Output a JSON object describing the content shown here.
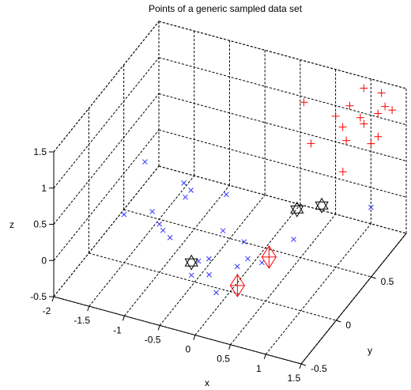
{
  "chart_data": {
    "type": "scatter",
    "title": "Points of a generic sampled data set",
    "xlabel": "x",
    "ylabel": "y",
    "zlabel": "z",
    "xlim": [
      -2,
      1.5
    ],
    "ylim": [
      -0.5,
      1
    ],
    "zlim": [
      -0.5,
      1.5
    ],
    "x_ticks": [
      "-2",
      "-1.5",
      "-1",
      "-0.5",
      "0",
      "0.5",
      "1",
      "1.5"
    ],
    "y_ticks": [
      "-0.5",
      "0",
      "0.5"
    ],
    "z_ticks": [
      "-0.5",
      "0",
      "0.5",
      "1",
      "1.5"
    ],
    "grid": true,
    "series": [
      {
        "marker": "x",
        "color": "#3333ff",
        "points": [
          [
            -1.85,
            0.65,
            0.02
          ],
          [
            -1.2,
            0.55,
            0.02
          ],
          [
            -1.05,
            0.5,
            0.02
          ],
          [
            -1.05,
            0.42,
            0.02
          ],
          [
            -1.3,
            0.2,
            0.02
          ],
          [
            -1.6,
            0.1,
            0.02
          ],
          [
            -1.1,
            0.1,
            0.02
          ],
          [
            -1.0,
            0.05,
            0.02
          ],
          [
            -0.85,
            0.0,
            0.02
          ],
          [
            -0.6,
            0.55,
            0.02
          ],
          [
            -0.3,
            0.2,
            0.02
          ],
          [
            0.05,
            0.15,
            0.02
          ],
          [
            -0.3,
            -0.15,
            0.02
          ],
          [
            -0.2,
            -0.1,
            0.02
          ],
          [
            -0.25,
            -0.3,
            0.02
          ],
          [
            -0.05,
            -0.25,
            0.02
          ],
          [
            0.2,
            -0.1,
            0.02
          ],
          [
            0.2,
            -0.4,
            0.02
          ],
          [
            0.25,
            0.0,
            0.02
          ],
          [
            0.45,
            0.0,
            0.02
          ],
          [
            1.2,
            0.8,
            0.02
          ],
          [
            0.6,
            0.3,
            0.02
          ]
        ]
      },
      {
        "marker": "+",
        "color": "#ff0000",
        "points": [
          [
            0.1,
            0.95,
            1.0
          ],
          [
            0.4,
            0.75,
            0.75
          ],
          [
            0.6,
            0.9,
            1.0
          ],
          [
            0.7,
            1.0,
            1.05
          ],
          [
            0.8,
            1.1,
            1.2
          ],
          [
            0.75,
            0.85,
            0.95
          ],
          [
            0.85,
            0.8,
            0.85
          ],
          [
            0.9,
            0.95,
            1.0
          ],
          [
            1.0,
            0.9,
            1.0
          ],
          [
            1.05,
            1.1,
            1.2
          ],
          [
            1.15,
            1.05,
            1.1
          ],
          [
            1.1,
            1.0,
            1.05
          ],
          [
            1.0,
            0.6,
            0.7
          ],
          [
            1.2,
            0.8,
            0.9
          ],
          [
            1.3,
            1.0,
            1.15
          ],
          [
            1.25,
            0.85,
            0.95
          ]
        ]
      },
      {
        "marker": "hexagram",
        "color": "#000000",
        "points": [
          [
            -0.35,
            -0.2,
            0.05
          ],
          [
            0.55,
            0.4,
            0.3
          ],
          [
            0.8,
            0.5,
            0.3
          ]
        ]
      },
      {
        "marker": "diamond",
        "color": "#ff0000",
        "points": [
          [
            0.5,
            0.05,
            0.05
          ],
          [
            0.4,
            -0.3,
            0.05
          ]
        ]
      }
    ]
  }
}
